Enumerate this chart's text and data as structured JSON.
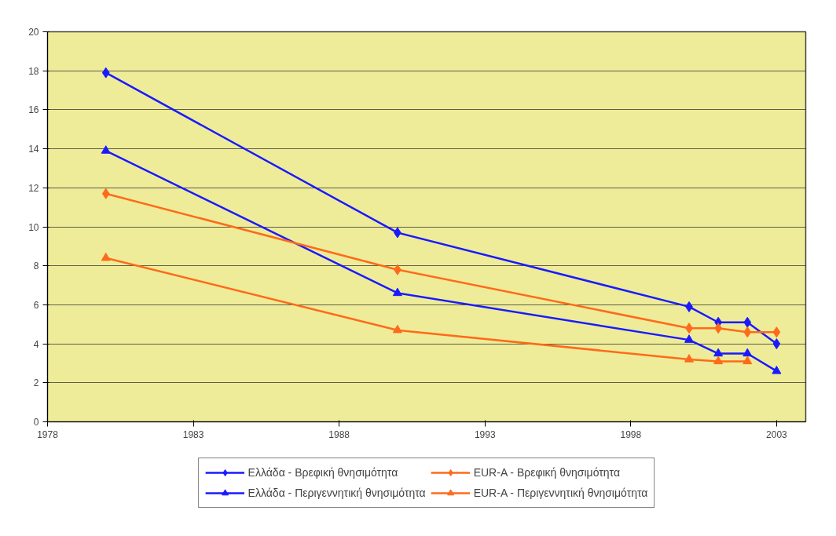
{
  "chart_data": {
    "type": "line",
    "x": [
      1980,
      1990,
      2000,
      2001,
      2002,
      2003
    ],
    "xlim": [
      1978,
      2004
    ],
    "xticks": [
      1978,
      1983,
      1988,
      1993,
      1998,
      2003
    ],
    "ylim": [
      0,
      20
    ],
    "yticks": [
      0,
      2,
      4,
      6,
      8,
      10,
      12,
      14,
      16,
      18,
      20
    ],
    "grid": "y",
    "legend": "bottom",
    "series": [
      {
        "name": "Ελλάδα - Βρεφική θνησιμότητα",
        "color": "#1a1aff",
        "marker": "diamond",
        "values": [
          17.9,
          9.7,
          5.9,
          5.1,
          5.1,
          4.0
        ]
      },
      {
        "name": "Ελλάδα - Περιγεννητική θνησιμότητα",
        "color": "#1a1aff",
        "marker": "triangle",
        "values": [
          13.9,
          6.6,
          4.2,
          3.5,
          3.5,
          2.6
        ]
      },
      {
        "name": "EUR-A - Βρεφική θνησιμότητα",
        "color": "#ff6a1a",
        "marker": "diamond",
        "values": [
          11.7,
          7.8,
          4.8,
          4.8,
          4.6,
          4.6
        ]
      },
      {
        "name": "EUR-A - Περιγεννητική θνησιμότητα",
        "color": "#ff6a1a",
        "marker": "triangle",
        "values": [
          8.4,
          4.7,
          3.2,
          3.1,
          3.1,
          null
        ]
      }
    ]
  }
}
